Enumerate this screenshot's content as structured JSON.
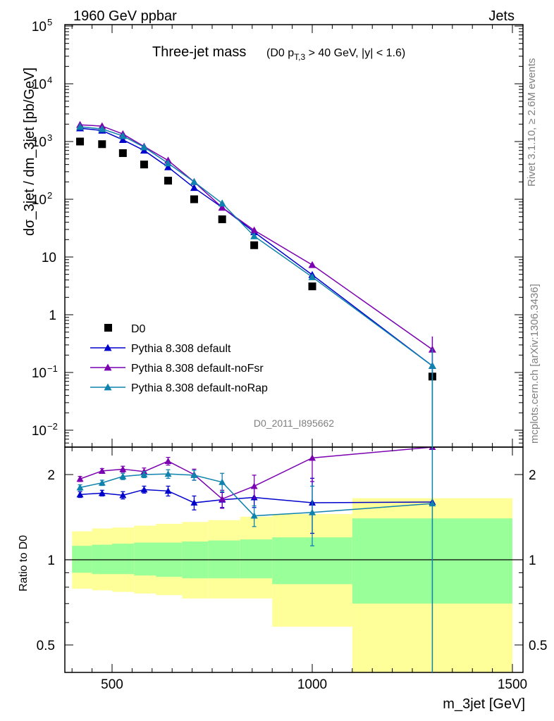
{
  "header": {
    "left": "1960 GeV ppbar",
    "right": "Jets"
  },
  "side_labels": {
    "rivet": "Rivet 3.1.10, ≥ 2.6M events",
    "mcplots": "mcplots.cern.ch [arXiv:1306.3436]"
  },
  "chart_data": [
    {
      "type": "scatter",
      "panel": "main",
      "title": "Three-jet mass",
      "title_cut": "(D0 p_T,3 > 40 GeV, |y| < 1.6)",
      "ylabel": "dσ_3jet / dm_3jet [pb/GeV]",
      "analysis_label": "D0_2011_I895662",
      "y_scale": "log",
      "xlim": [
        380,
        1520
      ],
      "ylim": [
        0.006,
        100000
      ],
      "y_tick_labels": [
        "10^-2",
        "10^-1",
        "1",
        "10",
        "10^2",
        "10^3",
        "10^4",
        "10^5"
      ],
      "legend_position": "bottom-left",
      "series": [
        {
          "name": "D0",
          "color": "#000000",
          "marker": "square",
          "x": [
            420,
            475,
            527,
            580,
            640,
            705,
            775,
            855,
            1000,
            1300
          ],
          "y": [
            1000,
            900,
            630,
            400,
            210,
            100,
            45,
            16,
            3.1,
            0.085
          ],
          "err": [
            0,
            0,
            0,
            0,
            0,
            0,
            0,
            0,
            0,
            0
          ]
        },
        {
          "name": "Pythia 8.308 default",
          "color": "#0000cc",
          "marker": "triangle",
          "x": [
            420,
            475,
            527,
            580,
            640,
            705,
            775,
            855,
            1000,
            1300
          ],
          "y": [
            1700,
            1550,
            1070,
            700,
            360,
            158,
            72,
            27,
            4.9,
            0.13
          ],
          "err": [
            0,
            0,
            0,
            0,
            0,
            0,
            0,
            0,
            0,
            0
          ]
        },
        {
          "name": "Pythia 8.308 default-noFsr",
          "color": "#7a00b0",
          "marker": "triangle",
          "x": [
            420,
            475,
            527,
            580,
            640,
            705,
            775,
            855,
            1000,
            1300
          ],
          "y": [
            1950,
            1850,
            1350,
            820,
            470,
            200,
            72,
            29,
            7.3,
            0.25
          ],
          "err": [
            0,
            0,
            0,
            0,
            0,
            0,
            0,
            0,
            0,
            0.17
          ]
        },
        {
          "name": "Pythia 8.308 default-noRap",
          "color": "#0f82ad",
          "marker": "triangle",
          "x": [
            420,
            475,
            527,
            580,
            640,
            705,
            775,
            855,
            1000,
            1300
          ],
          "y": [
            1800,
            1650,
            1250,
            800,
            420,
            200,
            85,
            23,
            4.5,
            0.13
          ],
          "err": [
            0,
            0,
            0,
            0,
            0,
            0,
            0,
            0,
            0,
            0.13
          ]
        }
      ]
    },
    {
      "type": "scatter",
      "panel": "ratio",
      "ylabel": "Ratio to D0",
      "xlabel": "m_3jet [GeV]",
      "y_scale": "log",
      "xlim": [
        380,
        1520
      ],
      "ylim": [
        0.4,
        2.4
      ],
      "x_tick_labels": [
        "500",
        "1000",
        "1500"
      ],
      "y_tick_labels": [
        "0.5",
        "1",
        "2"
      ],
      "bins": [
        400,
        450,
        500,
        555,
        610,
        675,
        740,
        820,
        900,
        1100,
        1500
      ],
      "band_stat": [
        [
          0.9,
          1.12
        ],
        [
          0.89,
          1.13
        ],
        [
          0.89,
          1.14
        ],
        [
          0.88,
          1.15
        ],
        [
          0.87,
          1.15
        ],
        [
          0.86,
          1.16
        ],
        [
          0.86,
          1.17
        ],
        [
          0.86,
          1.18
        ],
        [
          0.82,
          1.2
        ],
        [
          0.7,
          1.4
        ]
      ],
      "band_total": [
        [
          0.79,
          1.26
        ],
        [
          0.78,
          1.29
        ],
        [
          0.77,
          1.3
        ],
        [
          0.76,
          1.32
        ],
        [
          0.75,
          1.34
        ],
        [
          0.73,
          1.36
        ],
        [
          0.73,
          1.38
        ],
        [
          0.73,
          1.42
        ],
        [
          0.58,
          1.45
        ],
        [
          0.35,
          1.65
        ]
      ],
      "series": [
        {
          "name": "Pythia 8.308 default",
          "color": "#0000cc",
          "x": [
            420,
            475,
            527,
            580,
            640,
            705,
            775,
            855,
            1000,
            1300
          ],
          "y": [
            1.7,
            1.72,
            1.69,
            1.77,
            1.75,
            1.59,
            1.63,
            1.66,
            1.59,
            1.6
          ],
          "err": [
            0.04,
            0.04,
            0.05,
            0.05,
            0.07,
            0.09,
            0.1,
            0.13,
            0.35,
            0
          ]
        },
        {
          "name": "Pythia 8.308 default-noFsr",
          "color": "#7a00b0",
          "x": [
            420,
            475,
            527,
            580,
            640,
            705,
            775,
            855,
            1000,
            1300
          ],
          "y": [
            1.93,
            2.06,
            2.09,
            2.05,
            2.23,
            2.0,
            1.64,
            1.82,
            2.29,
            2.5
          ],
          "err": [
            0.04,
            0.04,
            0.05,
            0.06,
            0.07,
            0.09,
            0.12,
            0.17,
            0.4,
            0
          ]
        },
        {
          "name": "Pythia 8.308 default-noRap",
          "color": "#0f82ad",
          "x": [
            420,
            475,
            527,
            580,
            640,
            705,
            775,
            855,
            1000,
            1300
          ],
          "y": [
            1.8,
            1.87,
            1.97,
            2.0,
            2.01,
            1.99,
            1.88,
            1.43,
            1.47,
            1.58
          ],
          "err": [
            0.04,
            0.04,
            0.05,
            0.05,
            0.07,
            0.08,
            0.14,
            0.12,
            0.35,
            0
          ]
        }
      ]
    }
  ]
}
